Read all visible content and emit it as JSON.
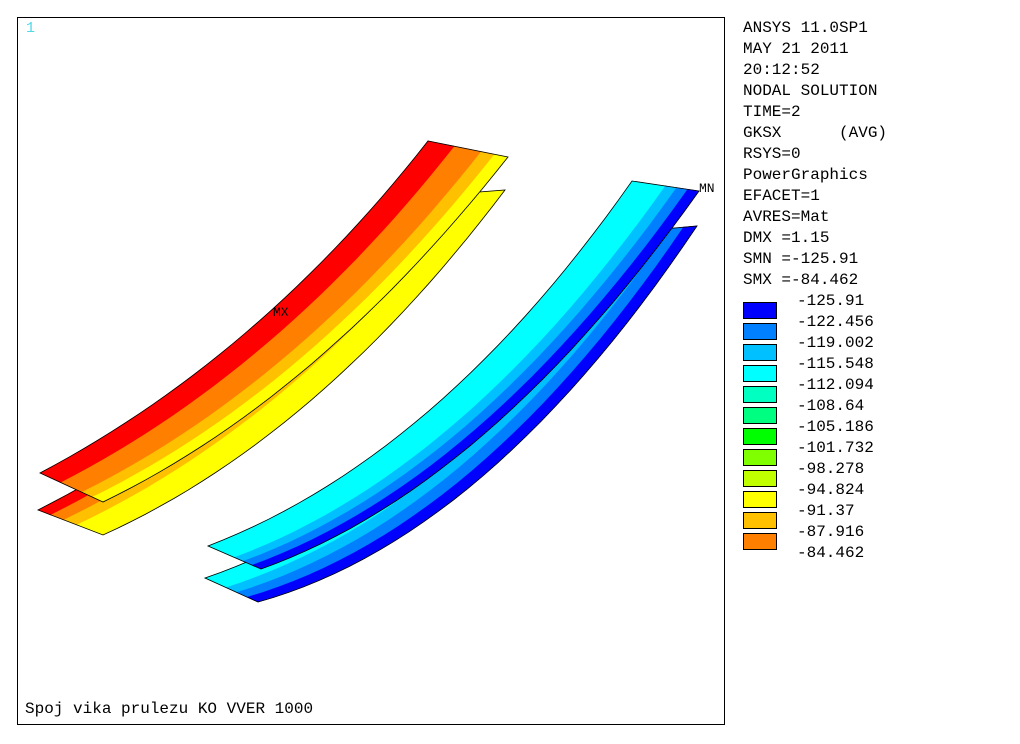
{
  "viewport": {
    "window_number": "1",
    "caption": "Spoj vika prulezu KO VVER 1000",
    "label_max": "MX",
    "label_min": "MN"
  },
  "info": {
    "lines": [
      "ANSYS 11.0SP1",
      "MAY 21 2011",
      "20:12:52",
      "NODAL SOLUTION",
      "TIME=2",
      "GKSX      (AVG)",
      "RSYS=0",
      "PowerGraphics",
      "EFACET=1",
      "AVRES=Mat",
      "DMX =1.15",
      "SMN =-125.91",
      "SMX =-84.462"
    ]
  },
  "legend": {
    "values": [
      "-125.91",
      "-122.456",
      "-119.002",
      "-115.548",
      "-112.094",
      "-108.64",
      "-105.186",
      "-101.732",
      "-98.278",
      "-94.824",
      "-91.37",
      "-87.916",
      "-84.462"
    ],
    "colors": [
      "#0000ff",
      "#0080ff",
      "#00c0ff",
      "#00ffff",
      "#00ffc0",
      "#00ff80",
      "#00ff00",
      "#80ff00",
      "#c0ff00",
      "#ffff00",
      "#ffc000",
      "#ff8000",
      "#ff0000"
    ]
  }
}
